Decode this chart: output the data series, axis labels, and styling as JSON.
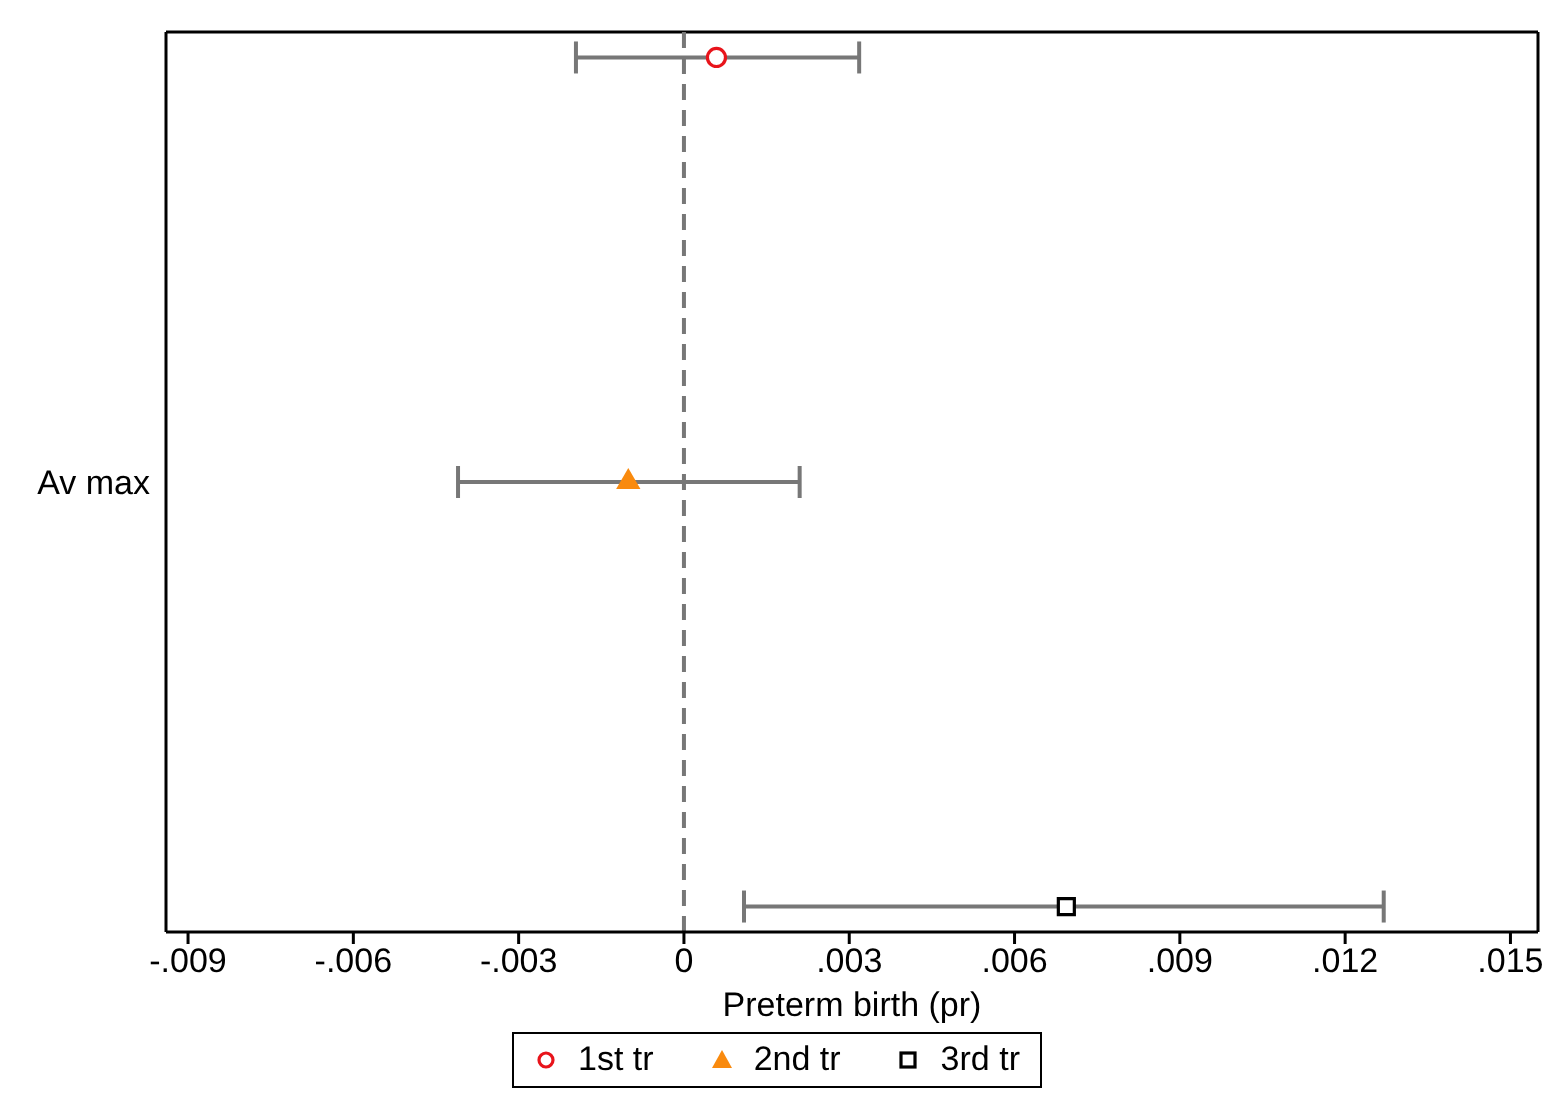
{
  "chart_data": {
    "type": "scatter",
    "orientation": "horizontal",
    "xlabel": "Preterm birth (pr)",
    "categories": [
      null,
      "Av max",
      null
    ],
    "series": [
      {
        "name": "1st tr",
        "color": "#e8141b",
        "marker": "circle",
        "values": [
          0.00059,
          null,
          null
        ],
        "errors": [
          [
            -0.00196,
            0.00318
          ],
          null,
          null
        ]
      },
      {
        "name": "2nd tr",
        "color": "#f98a0e",
        "marker": "triangle",
        "values": [
          null,
          -0.00101,
          null
        ],
        "errors": [
          null,
          [
            -0.0041,
            0.0021
          ],
          null
        ]
      },
      {
        "name": "3rd tr",
        "color": "#000000",
        "marker": "square",
        "values": [
          null,
          null,
          0.00694
        ],
        "errors": [
          null,
          null,
          [
            0.00109,
            0.0127
          ]
        ]
      }
    ],
    "xlim": [
      -0.0094,
      0.0155
    ],
    "xticks": [
      {
        "value": -0.009,
        "label": "-.009"
      },
      {
        "value": -0.006,
        "label": "-.006"
      },
      {
        "value": -0.003,
        "label": "-.003"
      },
      {
        "value": 0,
        "label": "0"
      },
      {
        "value": 0.003,
        "label": ".003"
      },
      {
        "value": 0.006,
        "label": ".006"
      },
      {
        "value": 0.009,
        "label": ".009"
      },
      {
        "value": 0.012,
        "label": ".012"
      },
      {
        "value": 0.015,
        "label": ".015"
      }
    ],
    "ref_lines": [
      {
        "axis": "x",
        "value": 0,
        "color": "#777777",
        "line_style": "dashed"
      }
    ],
    "grid": false,
    "legend": "bottom"
  }
}
